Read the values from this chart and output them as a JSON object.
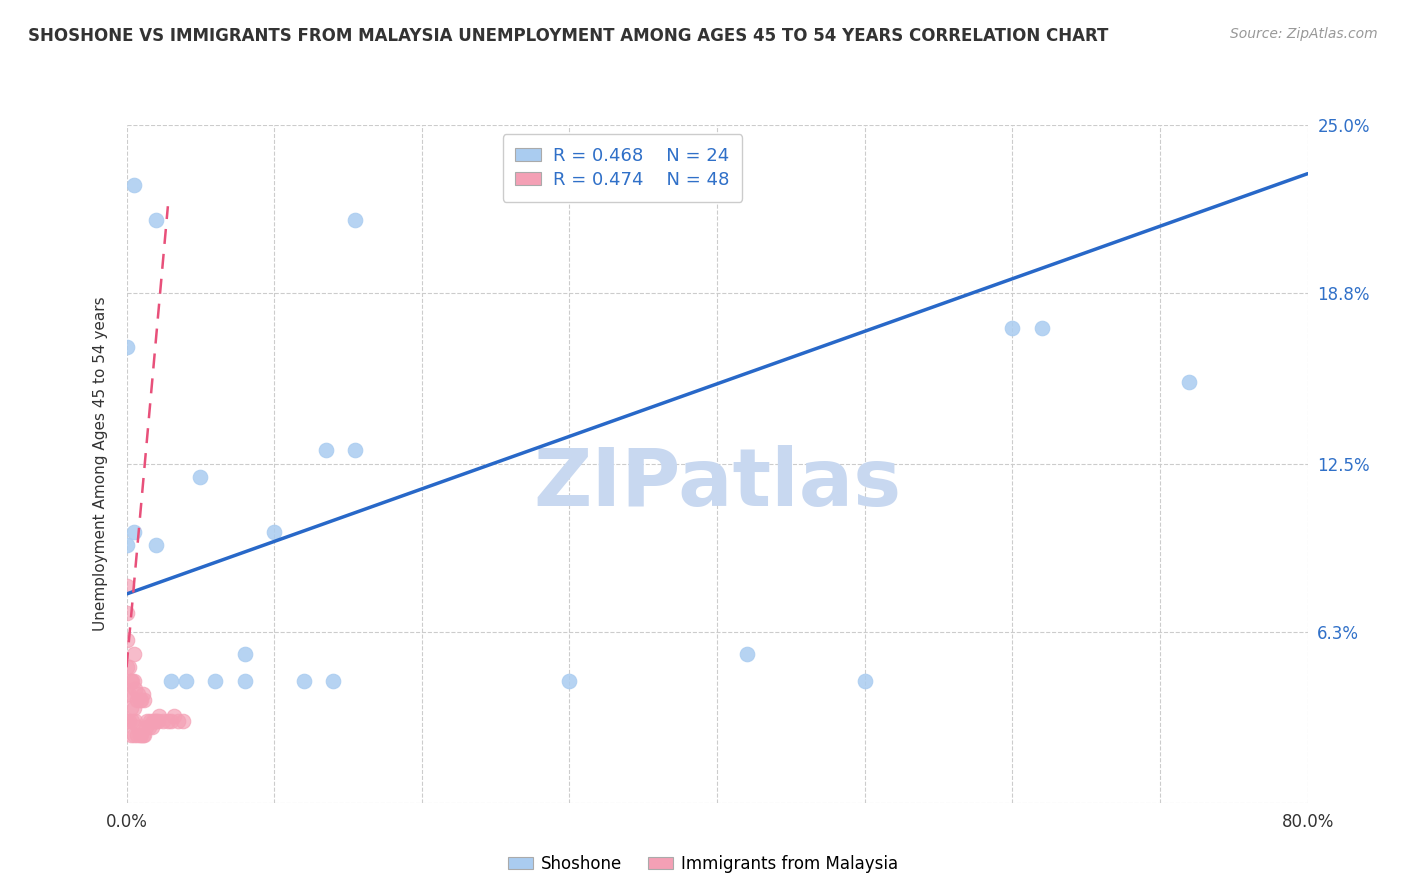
{
  "title": "SHOSHONE VS IMMIGRANTS FROM MALAYSIA UNEMPLOYMENT AMONG AGES 45 TO 54 YEARS CORRELATION CHART",
  "source": "Source: ZipAtlas.com",
  "ylabel": "Unemployment Among Ages 45 to 54 years",
  "xlim": [
    0.0,
    0.8
  ],
  "ylim": [
    0.0,
    0.25
  ],
  "xticks": [
    0.0,
    0.1,
    0.2,
    0.3,
    0.4,
    0.5,
    0.6,
    0.7,
    0.8
  ],
  "xticklabels": [
    "0.0%",
    "",
    "",
    "",
    "",
    "",
    "",
    "",
    "80.0%"
  ],
  "ytick_positions": [
    0.0,
    0.063,
    0.125,
    0.188,
    0.25
  ],
  "ytick_labels": [
    "",
    "6.3%",
    "12.5%",
    "18.8%",
    "25.0%"
  ],
  "shoshone_color": "#aaccf0",
  "malaysia_color": "#f4a0b5",
  "regression_blue": "#2868c8",
  "regression_pink": "#e8507a",
  "watermark": "ZIPatlas",
  "watermark_color": "#c8d8f0",
  "legend_r1": "R = 0.468",
  "legend_n1": "N = 24",
  "legend_r2": "R = 0.474",
  "legend_n2": "N = 48",
  "shoshone_label": "Shoshone",
  "malaysia_label": "Immigrants from Malaysia",
  "shoshone_x": [
    0.005,
    0.02,
    0.155,
    0.0,
    0.005,
    0.0,
    0.02,
    0.05,
    0.1,
    0.135,
    0.155,
    0.08,
    0.12,
    0.14,
    0.3,
    0.42,
    0.5,
    0.62,
    0.72,
    0.6,
    0.03,
    0.04,
    0.06,
    0.08
  ],
  "shoshone_y": [
    0.228,
    0.215,
    0.215,
    0.168,
    0.1,
    0.095,
    0.095,
    0.12,
    0.1,
    0.13,
    0.13,
    0.045,
    0.045,
    0.045,
    0.045,
    0.055,
    0.045,
    0.175,
    0.155,
    0.175,
    0.045,
    0.045,
    0.045,
    0.055
  ],
  "malaysia_x": [
    0.0,
    0.0,
    0.0,
    0.0,
    0.0,
    0.0,
    0.002,
    0.002,
    0.002,
    0.003,
    0.003,
    0.003,
    0.004,
    0.004,
    0.005,
    0.005,
    0.005,
    0.005,
    0.006,
    0.006,
    0.007,
    0.007,
    0.008,
    0.008,
    0.009,
    0.009,
    0.01,
    0.01,
    0.011,
    0.011,
    0.012,
    0.012,
    0.013,
    0.014,
    0.015,
    0.016,
    0.017,
    0.018,
    0.019,
    0.02,
    0.021,
    0.022,
    0.025,
    0.028,
    0.03,
    0.032,
    0.035,
    0.038
  ],
  "malaysia_y": [
    0.03,
    0.04,
    0.05,
    0.06,
    0.07,
    0.08,
    0.03,
    0.04,
    0.05,
    0.025,
    0.035,
    0.045,
    0.03,
    0.045,
    0.025,
    0.035,
    0.045,
    0.055,
    0.03,
    0.042,
    0.025,
    0.038,
    0.028,
    0.04,
    0.025,
    0.038,
    0.025,
    0.038,
    0.025,
    0.04,
    0.025,
    0.038,
    0.028,
    0.03,
    0.028,
    0.03,
    0.028,
    0.03,
    0.03,
    0.03,
    0.03,
    0.032,
    0.03,
    0.03,
    0.03,
    0.032,
    0.03,
    0.03
  ],
  "blue_line_x": [
    0.0,
    0.8
  ],
  "blue_line_y": [
    0.077,
    0.232
  ],
  "pink_line_x": [
    0.0,
    0.028
  ],
  "pink_line_y": [
    0.05,
    0.22
  ]
}
